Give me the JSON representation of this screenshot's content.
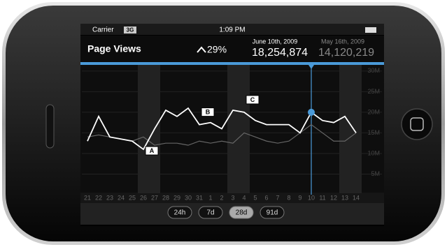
{
  "status_bar": {
    "carrier": "Carrier",
    "network": "3G",
    "time": "1:09 PM"
  },
  "header": {
    "title": "Page Views",
    "change": "29%",
    "current": {
      "date": "June 10th, 2009",
      "value": "18,254,874"
    },
    "previous": {
      "date": "May 16th, 2009",
      "value": "14,120,219"
    }
  },
  "chart_data": {
    "type": "line",
    "categories": [
      "21",
      "22",
      "23",
      "24",
      "25",
      "26",
      "27",
      "28",
      "29",
      "30",
      "31",
      "1",
      "2",
      "3",
      "4",
      "5",
      "6",
      "7",
      "8",
      "9",
      "10",
      "11",
      "12",
      "13",
      "14"
    ],
    "series": [
      {
        "name": "current",
        "color": "#ffffff",
        "values": [
          13,
          19,
          14,
          13.5,
          13,
          11,
          16,
          20.5,
          19,
          21,
          17,
          17.5,
          16,
          20.5,
          20,
          18,
          17,
          17,
          17,
          15,
          20,
          18,
          17.5,
          19,
          15
        ]
      },
      {
        "name": "previous",
        "color": "#666666",
        "values": [
          14,
          14.5,
          14,
          13.5,
          13,
          14,
          12,
          12.5,
          12.5,
          12,
          13,
          12.5,
          13,
          12.5,
          15,
          14,
          13,
          12.5,
          13,
          15,
          17,
          15,
          13,
          13,
          15
        ]
      }
    ],
    "ylim": [
      0,
      31.5
    ],
    "yticks": [
      {
        "value": 5,
        "label": "5M"
      },
      {
        "value": 10,
        "label": "10M"
      },
      {
        "value": 15,
        "label": "15M"
      },
      {
        "value": 20,
        "label": "20M"
      },
      {
        "value": 25,
        "label": "25M"
      },
      {
        "value": 30,
        "label": "30M"
      }
    ],
    "grid": true,
    "shaded": [
      "26",
      "27",
      "3",
      "4",
      "13",
      "14"
    ],
    "cursor": "10",
    "annotations": [
      {
        "label": "A",
        "at": "26"
      },
      {
        "label": "B",
        "at": "31"
      },
      {
        "label": "C",
        "at": "4"
      }
    ]
  },
  "ranges": {
    "options": [
      "24h",
      "7d",
      "28d",
      "91d"
    ],
    "selected": "28d"
  }
}
